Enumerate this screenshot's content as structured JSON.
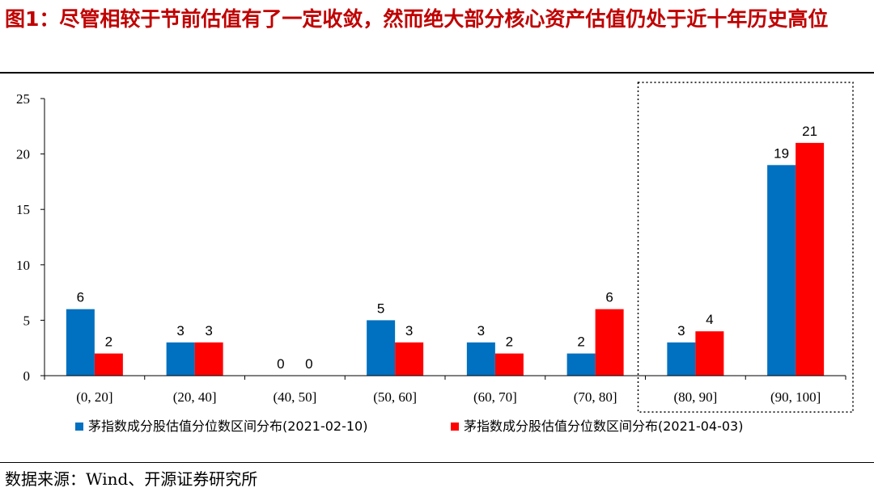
{
  "figure": {
    "title": "图1：尽管相较于节前估值有了一定收敛，然而绝大部分核心资产估值仍处于近十年历史高位",
    "source": "数据来源：Wind、开源证券研究所"
  },
  "chart_data": {
    "type": "bar",
    "categories": [
      "(0, 20]",
      "(20, 40]",
      "(40, 50]",
      "(50, 60]",
      "(60, 70]",
      "(70, 80]",
      "(80, 90]",
      "(90, 100]"
    ],
    "series": [
      {
        "name": "茅指数成分股估值分位数区间分布(2021-02-10)",
        "color": "#0070c0",
        "values": [
          6,
          3,
          0,
          5,
          3,
          2,
          3,
          19
        ]
      },
      {
        "name": "茅指数成分股估值分位数区间分布(2021-04-03)",
        "color": "#ff0000",
        "values": [
          2,
          3,
          0,
          3,
          2,
          6,
          4,
          21
        ]
      }
    ],
    "ylim": [
      0,
      25
    ],
    "yticks": [
      0,
      5,
      10,
      15,
      20,
      25
    ],
    "legend_position": "bottom",
    "grid": false,
    "highlight_categories": [
      "(80, 90]",
      "(90, 100]"
    ]
  }
}
